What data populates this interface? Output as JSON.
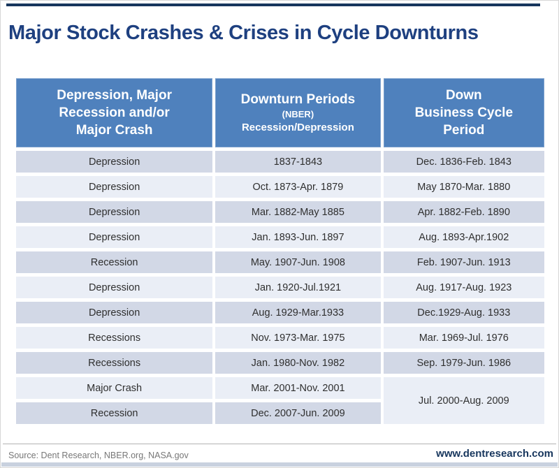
{
  "title": "Major Stock Crashes & Crises in Cycle Downturns",
  "footer": {
    "source": "Source: Dent Research, NBER.org, NASA.gov",
    "website": "www.dentresearch.com"
  },
  "colors": {
    "title_navy": "#1e4080",
    "accent_navy": "#17365d",
    "header_bg": "#4f81bd",
    "row_dark": "#d2d8e6",
    "row_light": "#eaeef6",
    "bottom_strip": "#c9d1df",
    "source_gray": "#777777"
  },
  "chart_data": {
    "type": "table",
    "title": "Major Stock Crashes & Crises in Cycle Downturns",
    "columns": [
      {
        "lines": [
          "Depression, Major",
          "Recession and/or",
          "Major Crash"
        ]
      },
      {
        "lines": [
          "Downturn Periods",
          "(NBER)",
          "Recession/Depression"
        ]
      },
      {
        "lines": [
          "Down",
          "Business Cycle",
          "Period"
        ]
      }
    ],
    "rows": [
      {
        "type": "Depression",
        "downturn": "1837-1843",
        "cycle": "Dec. 1836-Feb. 1843"
      },
      {
        "type": "Depression",
        "downturn": "Oct. 1873-Apr. 1879",
        "cycle": "May 1870-Mar. 1880"
      },
      {
        "type": "Depression",
        "downturn": "Mar. 1882-May 1885",
        "cycle": "Apr. 1882-Feb. 1890"
      },
      {
        "type": "Depression",
        "downturn": "Jan. 1893-Jun. 1897",
        "cycle": "Aug. 1893-Apr.1902"
      },
      {
        "type": "Recession",
        "downturn": "May. 1907-Jun. 1908",
        "cycle": "Feb. 1907-Jun. 1913"
      },
      {
        "type": "Depression",
        "downturn": "Jan. 1920-Jul.1921",
        "cycle": "Aug. 1917-Aug. 1923"
      },
      {
        "type": "Depression",
        "downturn": "Aug. 1929-Mar.1933",
        "cycle": "Dec.1929-Aug. 1933"
      },
      {
        "type": "Recessions",
        "downturn": "Nov. 1973-Mar. 1975",
        "cycle": "Mar. 1969-Jul. 1976"
      },
      {
        "type": "Recessions",
        "downturn": "Jan. 1980-Nov. 1982",
        "cycle": "Sep. 1979-Jun. 1986"
      },
      {
        "type": "Major Crash",
        "downturn": "Mar. 2001-Nov. 2001",
        "cycle": "Jul. 2000-Aug. 2009",
        "cycle_rowspan": 2
      },
      {
        "type": "Recession",
        "downturn": "Dec. 2007-Jun. 2009",
        "cycle": null
      }
    ],
    "source": "Source: Dent Research, NBER.org, NASA.gov",
    "website": "www.dentresearch.com"
  }
}
